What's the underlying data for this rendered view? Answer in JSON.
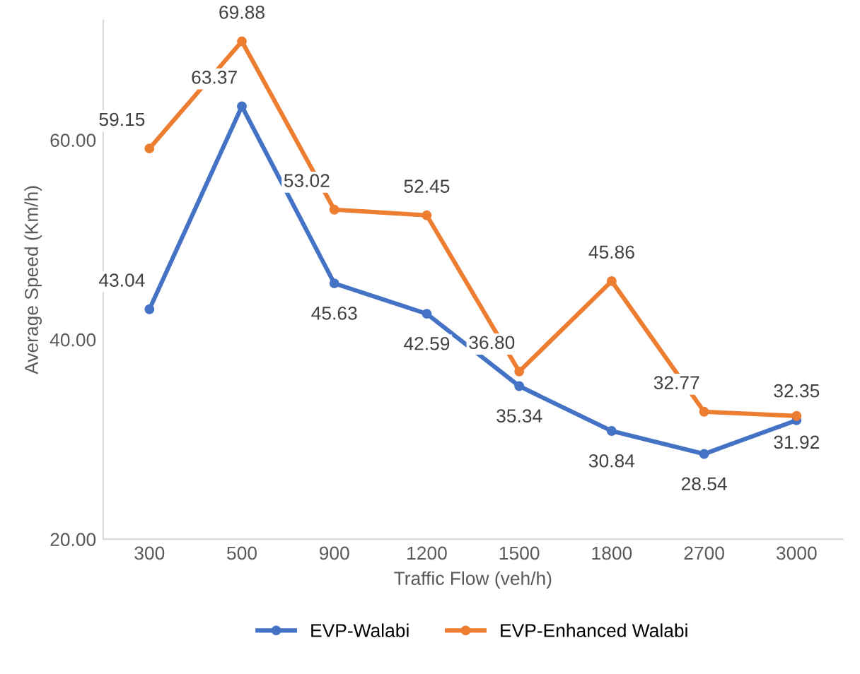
{
  "chart_data": {
    "type": "line",
    "xlabel": "Traffic Flow (veh/h)",
    "ylabel": "Average Speed (Km/h)",
    "categories": [
      "300",
      "500",
      "900",
      "1200",
      "1500",
      "1800",
      "2700",
      "3000"
    ],
    "ylim": [
      20,
      72
    ],
    "yticks": [
      {
        "value": 20,
        "label": "20.00"
      },
      {
        "value": 40,
        "label": "40.00"
      },
      {
        "value": 60,
        "label": "60.00"
      }
    ],
    "series": [
      {
        "name": "EVP-Walabi",
        "color": "#4472c4",
        "values": [
          43.04,
          63.37,
          45.63,
          42.59,
          35.34,
          30.84,
          28.54,
          31.92
        ],
        "value_labels": [
          "43.04",
          "63.37",
          "45.63",
          "42.59",
          "35.34",
          "30.84",
          "28.54",
          "31.92"
        ]
      },
      {
        "name": "EVP-Enhanced Walabi",
        "color": "#ed7d31",
        "values": [
          59.15,
          69.88,
          53.02,
          52.45,
          36.8,
          45.86,
          32.77,
          32.35
        ],
        "value_labels": [
          "59.15",
          "69.88",
          "53.02",
          "52.45",
          "36.80",
          "45.86",
          "32.77",
          "32.35"
        ]
      }
    ],
    "marker": "circle",
    "grid": false,
    "legend": "bottom"
  }
}
